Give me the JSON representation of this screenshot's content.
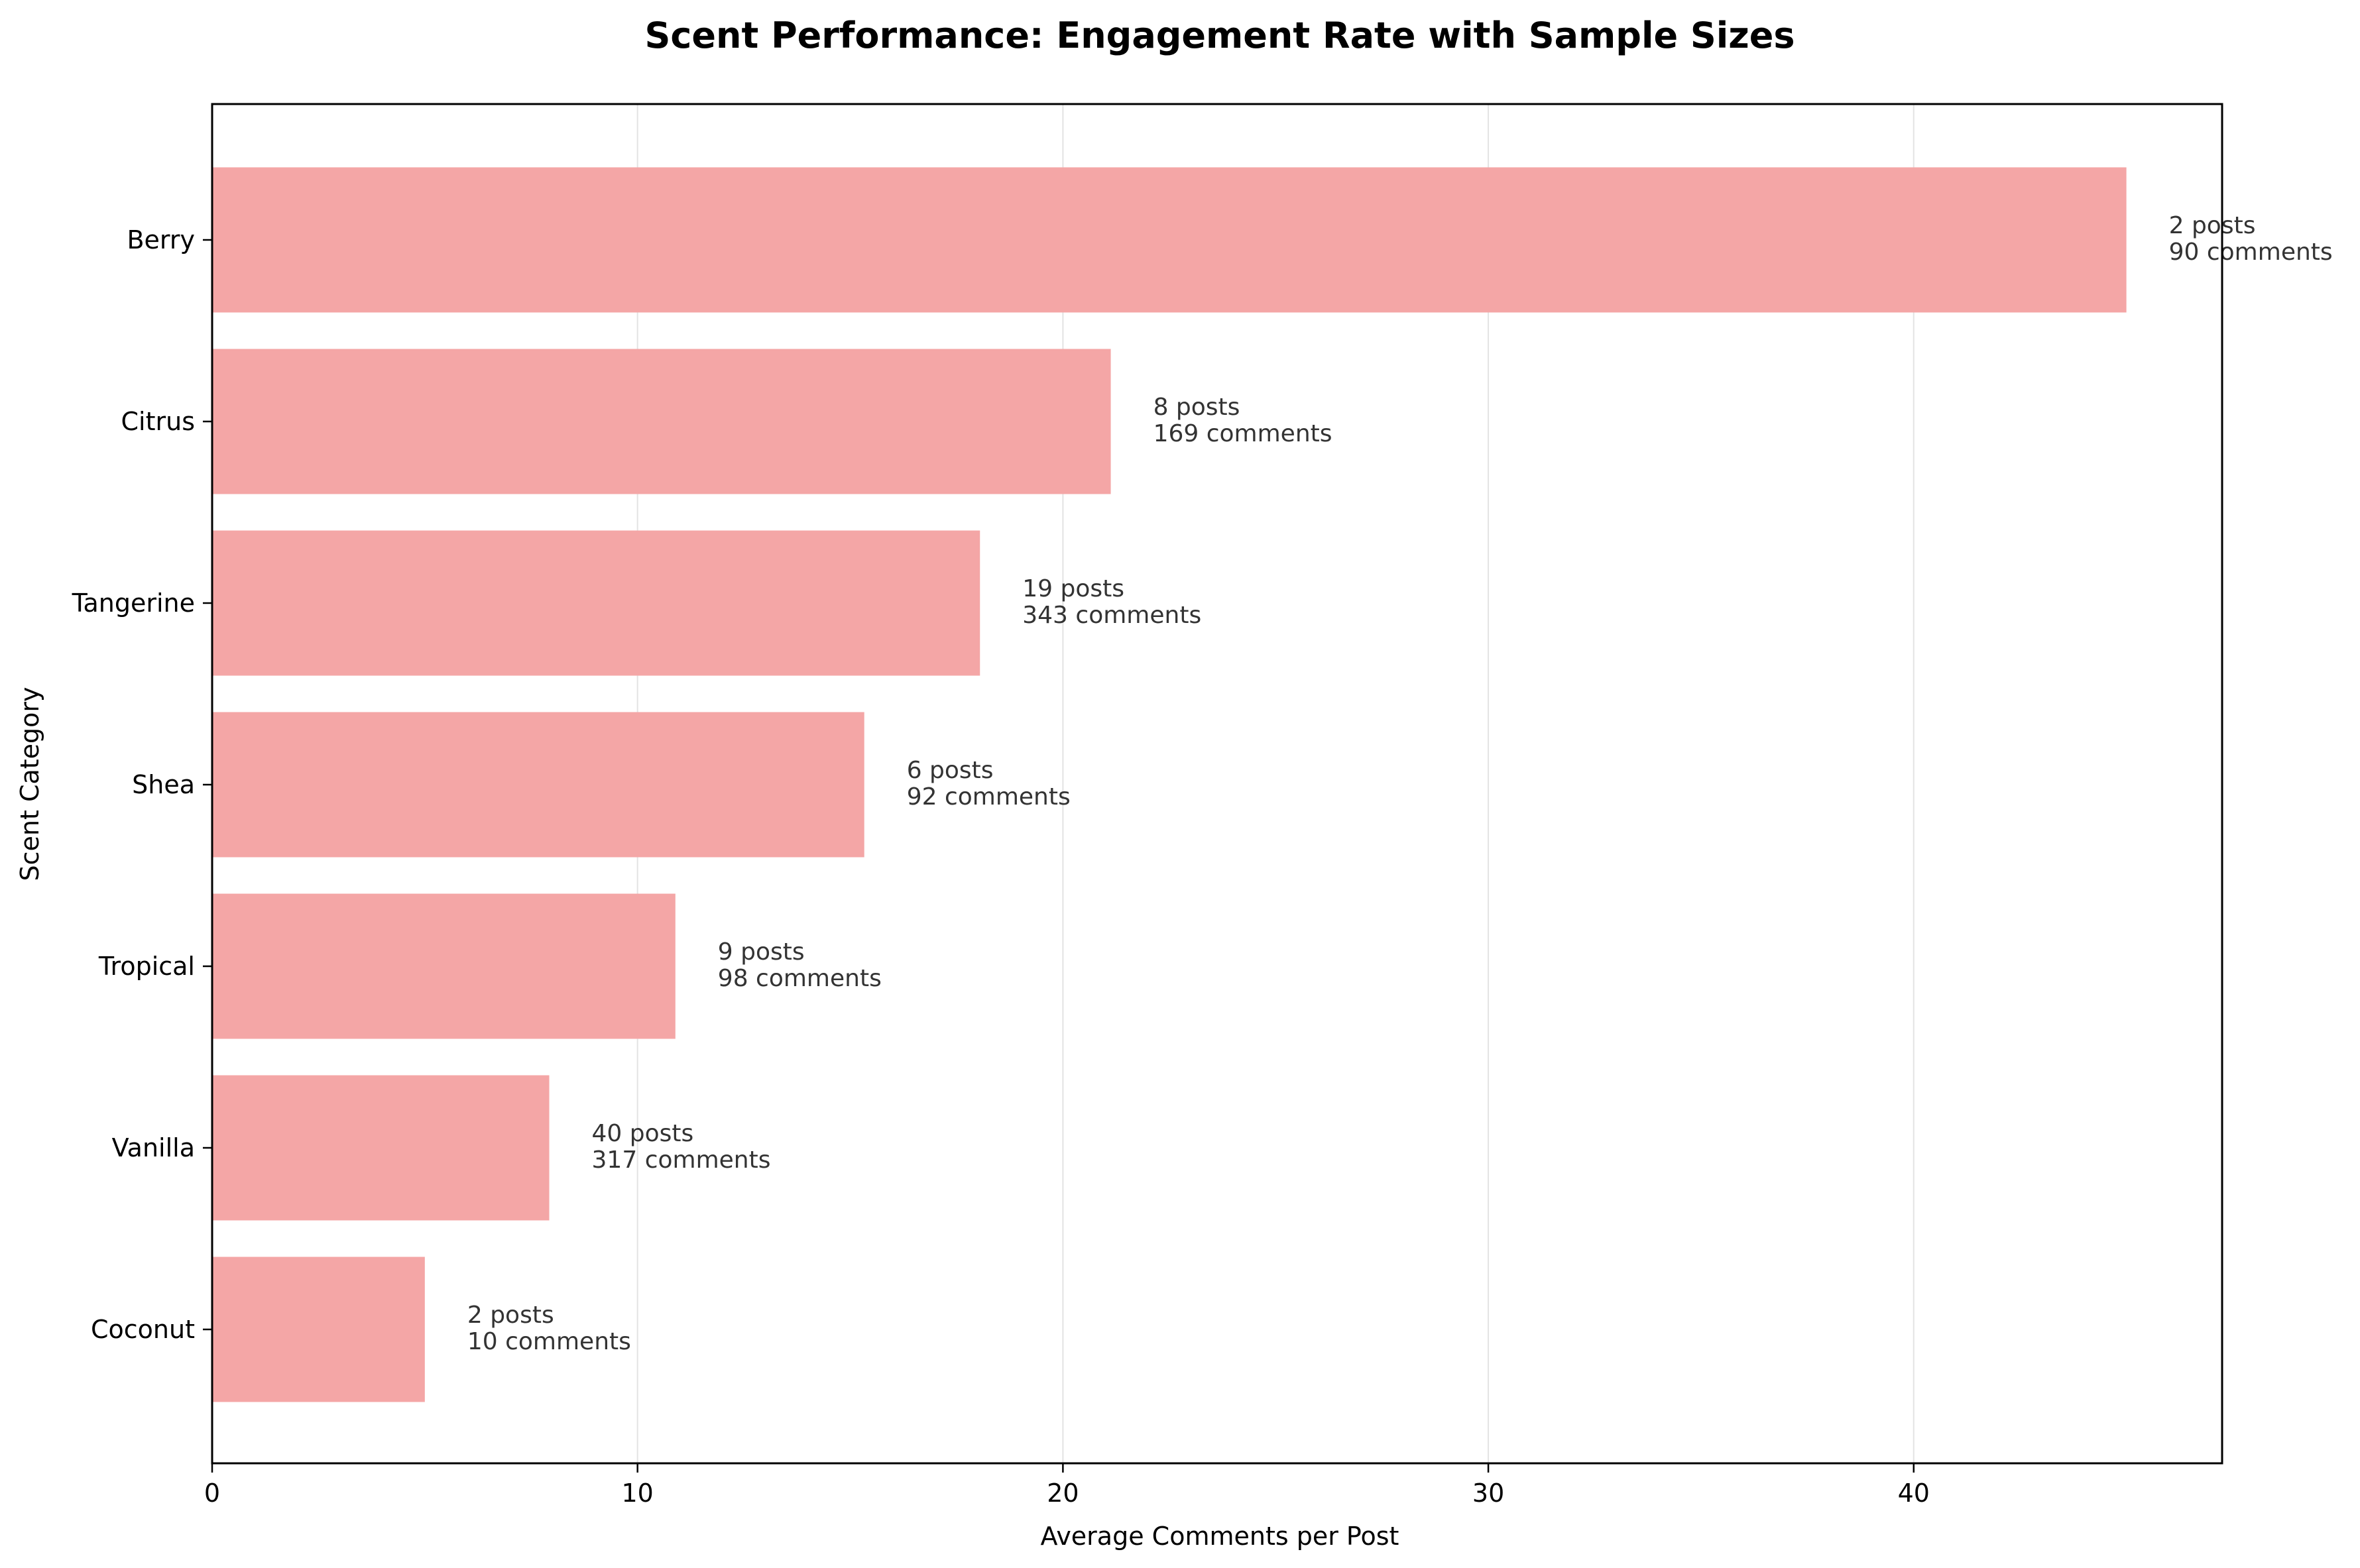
{
  "chart_data": {
    "type": "bar",
    "orientation": "horizontal",
    "title": "Scent Performance: Engagement Rate with Sample Sizes",
    "xlabel": "Average Comments per Post",
    "ylabel": "Scent Category",
    "xlim": [
      0,
      47.25
    ],
    "xticks": [
      0,
      10,
      20,
      30,
      40
    ],
    "grid": "vertical",
    "bar_color": "#f4a6a6",
    "categories": [
      "Berry",
      "Citrus",
      "Tangerine",
      "Shea",
      "Tropical",
      "Vanilla",
      "Coconut"
    ],
    "values": [
      45.0,
      21.125,
      18.05,
      15.33,
      10.89,
      7.925,
      5.0
    ],
    "annotations": [
      {
        "posts": "2 posts",
        "comments": "90 comments"
      },
      {
        "posts": "8 posts",
        "comments": "169 comments"
      },
      {
        "posts": "19 posts",
        "comments": "343 comments"
      },
      {
        "posts": "6 posts",
        "comments": "92 comments"
      },
      {
        "posts": "9 posts",
        "comments": "98 comments"
      },
      {
        "posts": "40 posts",
        "comments": "317 comments"
      },
      {
        "posts": "2 posts",
        "comments": "10 comments"
      }
    ]
  }
}
